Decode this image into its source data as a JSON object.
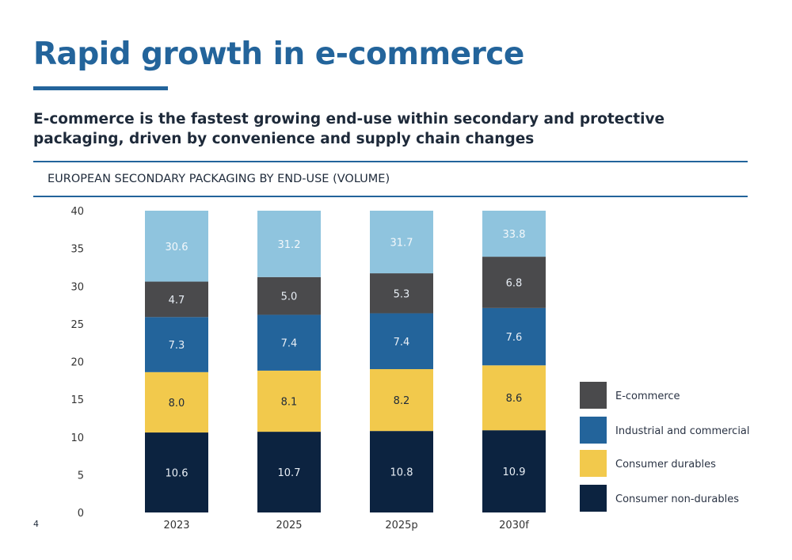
{
  "header": {
    "title": "Rapid growth in e-commerce",
    "subtitle": "E-commerce is the fastest growing end-use within secondary and protective packaging, driven by convenience and supply chain changes"
  },
  "page_number": "4",
  "chart_data": {
    "type": "bar",
    "stacked": true,
    "title": "EUROPEAN SECONDARY PACKAGING BY END-USE (VOLUME)",
    "categories": [
      "2023",
      "2025",
      "2025p",
      "2030f"
    ],
    "series": [
      {
        "name": "Consumer non-durables",
        "values": [
          10.6,
          10.7,
          10.8,
          10.9
        ],
        "color": "#0c2340"
      },
      {
        "name": "Consumer durables",
        "values": [
          8.0,
          8.1,
          8.2,
          8.6
        ],
        "color": "#f2c94c"
      },
      {
        "name": "Industrial and commercial",
        "values": [
          7.3,
          7.4,
          7.4,
          7.6
        ],
        "color": "#23649b"
      },
      {
        "name": "E-commerce",
        "values": [
          4.7,
          5.0,
          5.3,
          6.8
        ],
        "color": "#4a4a4c"
      }
    ],
    "totals": [
      30.6,
      31.2,
      31.7,
      33.8
    ],
    "total_color": "#8fc4de",
    "ylim": [
      0,
      40
    ],
    "yticks": [
      0,
      5,
      10,
      15,
      20,
      25,
      30,
      35,
      40
    ],
    "grid": false,
    "legend_placement": "right",
    "legend_order": [
      "E-commerce",
      "Industrial and commercial",
      "Consumer durables",
      "Consumer non-durables"
    ]
  }
}
